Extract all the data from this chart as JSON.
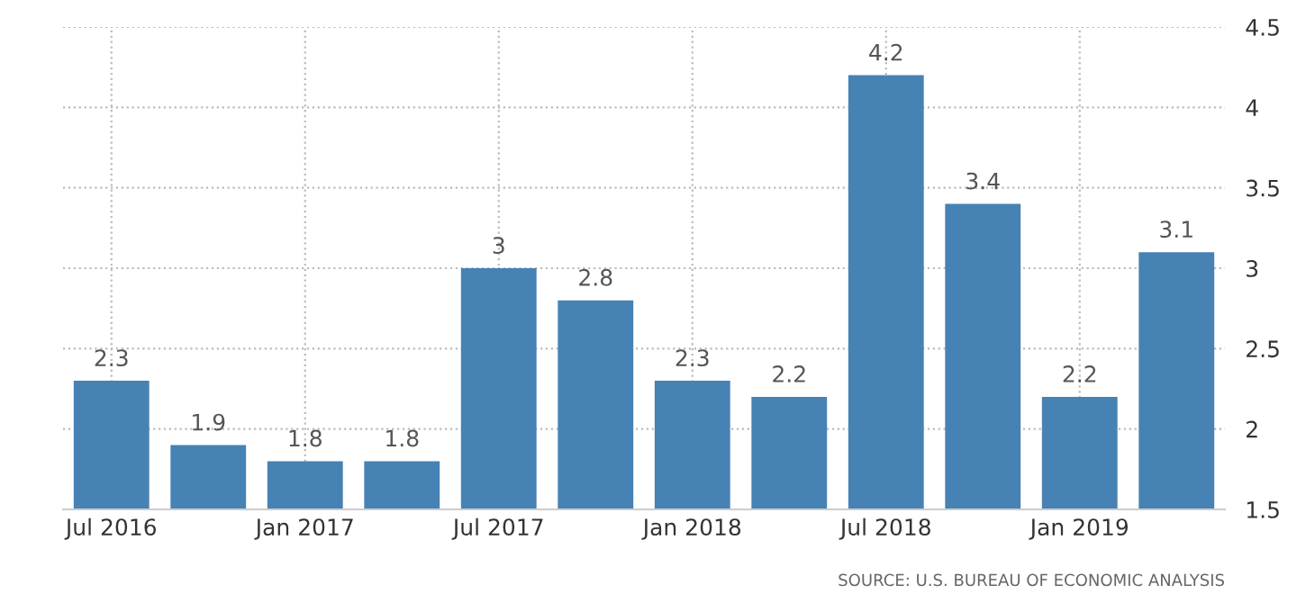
{
  "chart_data": {
    "type": "bar",
    "categories": [
      "Jul 2016",
      null,
      "Jan 2017",
      null,
      "Jul 2017",
      null,
      "Jan 2018",
      null,
      "Jul 2018",
      null,
      "Jan 2019",
      null
    ],
    "values": [
      2.3,
      1.9,
      1.8,
      1.8,
      3,
      2.8,
      2.3,
      2.2,
      4.2,
      3.4,
      2.2,
      3.1
    ],
    "color": "#4682b4",
    "ylim": [
      1.5,
      4.5
    ],
    "yticks": [
      1.5,
      2,
      2.5,
      3,
      3.5,
      4,
      4.5
    ],
    "grid": true,
    "data_labels": true,
    "annotations": [
      "SOURCE: U.S. BUREAU OF ECONOMIC ANALYSIS"
    ]
  }
}
